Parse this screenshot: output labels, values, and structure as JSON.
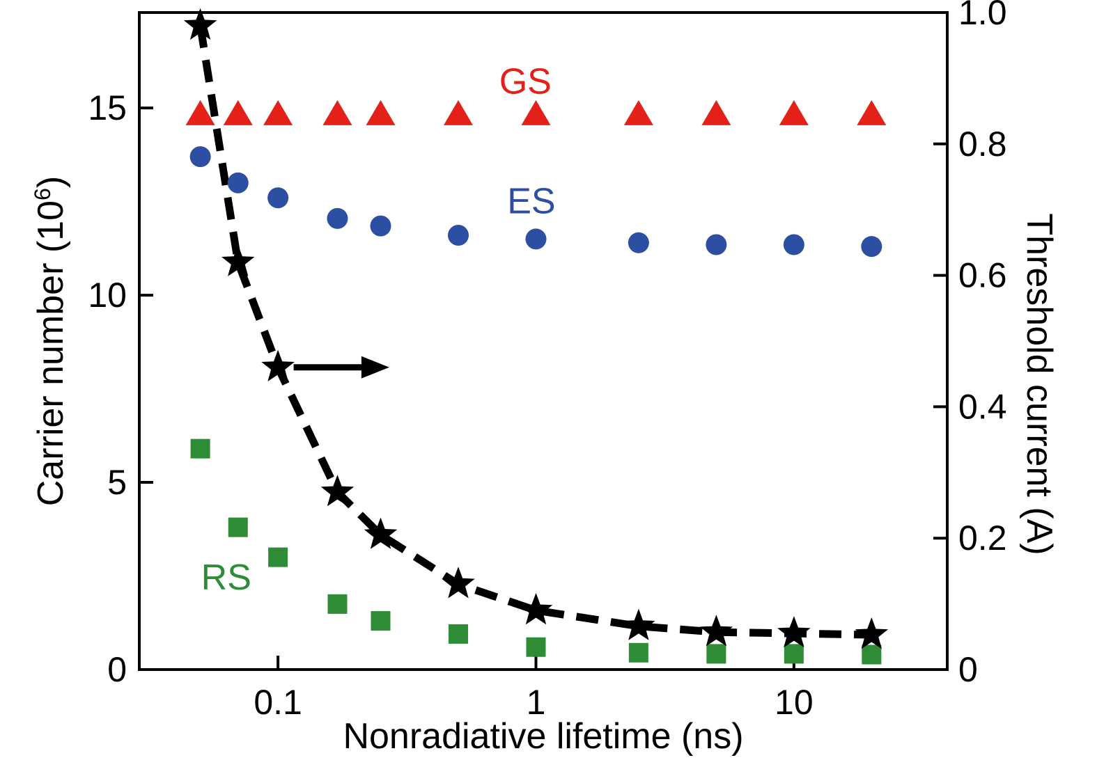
{
  "chart_data": {
    "type": "scatter",
    "xscale": "log",
    "grid": false,
    "xlabel": "Nonradiative lifetime (ns)",
    "ylabel_left": {
      "prefix": "Carrier number (10",
      "sup": "6",
      "suffix": ")"
    },
    "ylabel_right": "Threshold current (A)",
    "xlim": [
      0.029,
      39.3
    ],
    "ylim_left": [
      0,
      17.55
    ],
    "ylim_right": [
      0,
      1.0
    ],
    "x_ticks": {
      "values": [
        0.1,
        1,
        10
      ],
      "labels": [
        "0.1",
        "1",
        "10"
      ]
    },
    "y_left_ticks": {
      "values": [
        0,
        5,
        10,
        15
      ],
      "labels": [
        "0",
        "5",
        "10",
        "15"
      ]
    },
    "y_right_ticks": {
      "values": [
        0,
        0.2,
        0.4,
        0.6,
        0.8,
        1.0
      ],
      "labels": [
        "0",
        "0.2",
        "0.4",
        "0.6",
        "0.8",
        "1.0"
      ]
    },
    "x": [
      0.05,
      0.07,
      0.1,
      0.17,
      0.25,
      0.5,
      1,
      2.5,
      5,
      10,
      20
    ],
    "series": [
      {
        "name": "GS",
        "marker": "triangle",
        "color": "#e32119",
        "axis": "left",
        "values": [
          14.8,
          14.8,
          14.8,
          14.8,
          14.8,
          14.8,
          14.8,
          14.8,
          14.8,
          14.8,
          14.8
        ],
        "label": {
          "text": "GS",
          "x": 0.91,
          "y": 15.7
        }
      },
      {
        "name": "ES",
        "marker": "circle",
        "color": "#2c4ea3",
        "axis": "left",
        "values": [
          13.7,
          13.0,
          12.6,
          12.05,
          11.85,
          11.6,
          11.5,
          11.4,
          11.35,
          11.35,
          11.3
        ],
        "label": {
          "text": "ES",
          "x": 0.96,
          "y": 12.5
        }
      },
      {
        "name": "RS",
        "marker": "square",
        "color": "#2e8b36",
        "axis": "left",
        "values": [
          5.9,
          3.8,
          3.0,
          1.75,
          1.3,
          0.95,
          0.6,
          0.45,
          0.42,
          0.42,
          0.4
        ],
        "label": {
          "text": "RS",
          "x": 0.063,
          "y": 2.45
        }
      },
      {
        "name": "Threshold current",
        "marker": "star",
        "color": "#000000",
        "axis": "right",
        "line": "dashed",
        "values": [
          0.98,
          0.62,
          0.46,
          0.27,
          0.205,
          0.13,
          0.09,
          0.066,
          0.057,
          0.055,
          0.053
        ]
      }
    ],
    "annotations": [
      {
        "type": "arrow-right",
        "x_start": 0.115,
        "x_end": 0.27,
        "y_right": 0.46
      }
    ]
  }
}
